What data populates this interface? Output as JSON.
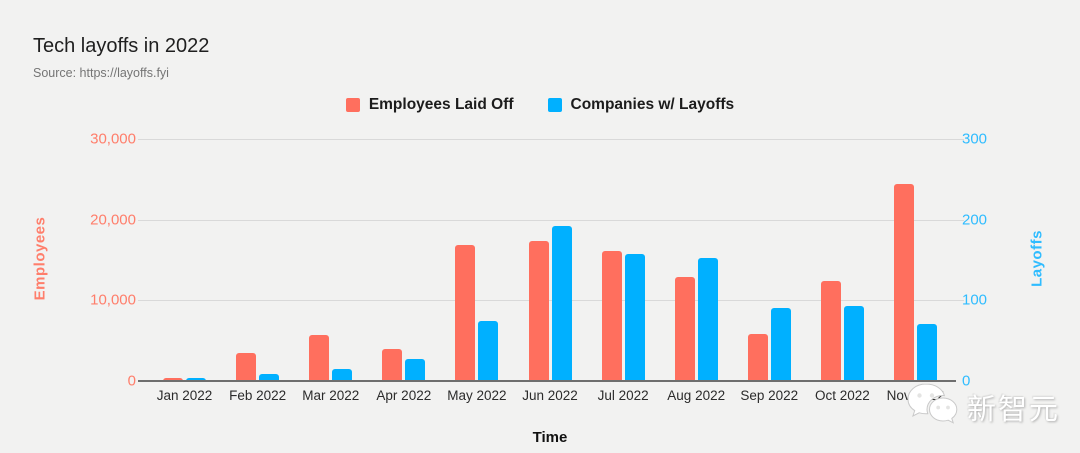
{
  "header": {
    "title": "Tech layoffs in 2022",
    "source": "Source: https://layoffs.fyi"
  },
  "chart_data": {
    "type": "bar",
    "title": "Tech layoffs in 2022",
    "xlabel": "Time",
    "grid": true,
    "legend_position": "top",
    "categories": [
      "Jan 2022",
      "Feb 2022",
      "Mar 2022",
      "Apr 2022",
      "May 2022",
      "Jun 2022",
      "Jul 2022",
      "Aug 2022",
      "Sep 2022",
      "Oct 2022",
      "Nov 2022"
    ],
    "series": [
      {
        "name": "Employees Laid Off",
        "axis": "left",
        "color": "#ff6f5e",
        "values": [
          400,
          3500,
          5700,
          4000,
          16800,
          17400,
          16100,
          12900,
          5800,
          12400,
          24400
        ]
      },
      {
        "name": "Companies w/ Layoffs",
        "axis": "right",
        "color": "#00b0ff",
        "values": [
          4,
          9,
          15,
          27,
          74,
          192,
          158,
          153,
          91,
          93,
          71
        ]
      }
    ],
    "left_axis": {
      "title": "Employees",
      "color": "#ff7e6b",
      "max": 30000,
      "ticks": [
        "0",
        "10,000",
        "20,000",
        "30,000"
      ]
    },
    "right_axis": {
      "title": "Layoffs",
      "color": "#2fbcff",
      "max": 300,
      "ticks": [
        "0",
        "100",
        "200",
        "300"
      ]
    }
  },
  "watermark": {
    "text": "新智元",
    "icon": "wechat-icon"
  }
}
